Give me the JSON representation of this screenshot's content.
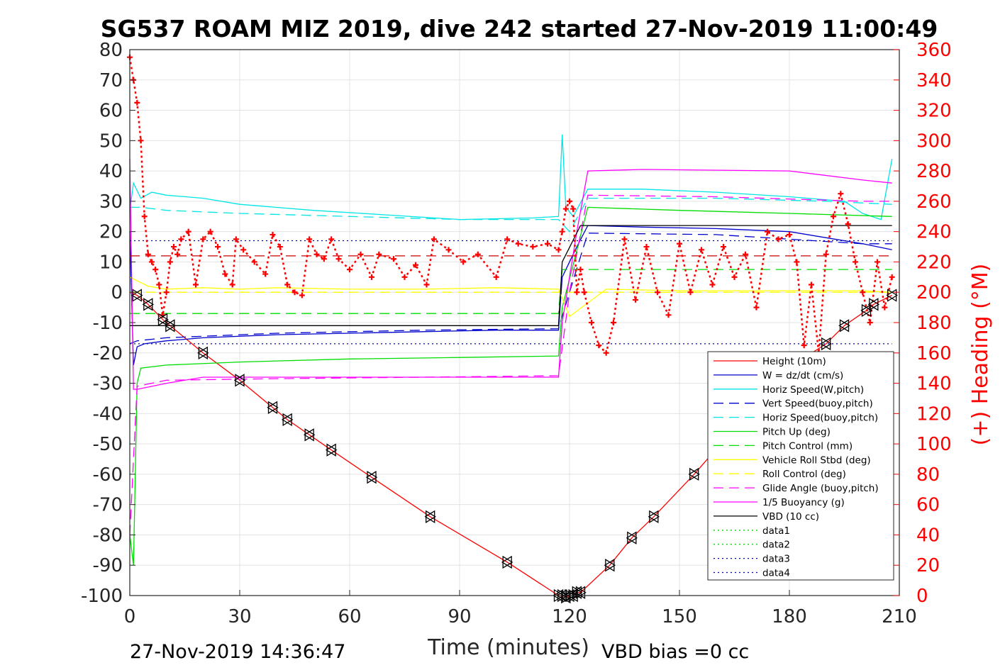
{
  "chart_data": {
    "type": "line",
    "title": "SG537 ROAM MIZ 2019, dive 242 started 27-Nov-2019 11:00:49",
    "xlabel": "Time (minutes)",
    "ylabel_right": "(+) Heading (°M)",
    "xlim": [
      0,
      210
    ],
    "ylim_left": [
      -100,
      80
    ],
    "ylim_right": [
      0,
      360
    ],
    "x_ticks": [
      "0",
      "30",
      "60",
      "90",
      "120",
      "150",
      "180",
      "210"
    ],
    "y_ticks_left": [
      "80",
      "70",
      "60",
      "50",
      "40",
      "30",
      "20",
      "10",
      "0",
      "-10",
      "-20",
      "-30",
      "-40",
      "-50",
      "-60",
      "-70",
      "-80",
      "-90",
      "-100"
    ],
    "y_ticks_right": [
      "360",
      "340",
      "320",
      "300",
      "280",
      "260",
      "240",
      "220",
      "200",
      "180",
      "160",
      "140",
      "120",
      "100",
      "80",
      "60",
      "40",
      "20",
      "0"
    ],
    "grid": true,
    "legend_position": "lower-right",
    "footer_left": "27-Nov-2019 14:36:47",
    "footer_right": "VBD bias =0 cc",
    "series": [
      {
        "name": "Height (10m)",
        "color": "#ff0000",
        "style": "solid",
        "x": [
          0,
          2,
          5,
          9,
          11,
          20,
          30,
          39,
          43,
          49,
          55,
          66,
          82,
          103,
          117,
          118,
          119,
          120,
          121,
          122,
          123,
          131,
          137,
          143,
          154,
          162,
          171,
          181,
          190,
          195,
          201,
          203,
          208
        ],
        "y": [
          0,
          -1,
          -4,
          -9,
          -11,
          -20,
          -29,
          -38,
          -42,
          -47,
          -52,
          -61,
          -74,
          -89,
          -100,
          -100,
          -100.5,
          -100,
          -100,
          -99,
          -99,
          -90,
          -81,
          -74,
          -60,
          -49,
          -37,
          -24,
          -17,
          -11,
          -6,
          -4,
          -1
        ]
      },
      {
        "name": "W = dz/dt (cm/s)",
        "color": "#0000cc",
        "style": "solid",
        "x": [
          0,
          1,
          2,
          4,
          10,
          20,
          40,
          60,
          80,
          100,
          117,
          118,
          122,
          125,
          140,
          160,
          180,
          200,
          208
        ],
        "y": [
          20,
          -24,
          -18,
          -17,
          -16,
          -15,
          -14,
          -13.5,
          -13,
          -12.5,
          -12.5,
          5,
          15,
          22,
          21.5,
          21,
          20,
          16,
          14
        ]
      },
      {
        "name": "Horiz Speed(W,pitch)",
        "color": "#00e5e5",
        "style": "solid",
        "x": [
          0,
          1,
          3,
          6,
          10,
          20,
          30,
          50,
          70,
          90,
          110,
          117,
          118,
          119,
          121,
          125,
          140,
          160,
          180,
          195,
          200,
          205,
          208
        ],
        "y": [
          27,
          36,
          31,
          33,
          32,
          31,
          29,
          27,
          25.5,
          24,
          24.5,
          25,
          52,
          28,
          25,
          34,
          34,
          33,
          31.5,
          30,
          26,
          24,
          44
        ]
      },
      {
        "name": "Vert Speed(buoy,pitch)",
        "color": "#0000cc",
        "style": "dashed",
        "x": [
          0,
          2,
          10,
          40,
          80,
          117,
          120,
          125,
          160,
          200,
          208
        ],
        "y": [
          -17,
          -16,
          -15,
          -13.5,
          -12.5,
          -12,
          0,
          19.5,
          19,
          16,
          16
        ]
      },
      {
        "name": "Horiz Speed(buoy,pitch)",
        "color": "#00e5e5",
        "style": "dashed",
        "x": [
          0,
          3,
          10,
          30,
          60,
          90,
          117,
          120,
          125,
          160,
          190,
          208
        ],
        "y": [
          28,
          28,
          27,
          26,
          25,
          24,
          24,
          20,
          31,
          31,
          30,
          29
        ]
      },
      {
        "name": "Pitch Up (deg)",
        "color": "#00dd00",
        "style": "solid",
        "x": [
          0,
          1,
          2,
          3,
          10,
          30,
          60,
          90,
          117,
          118,
          125,
          150,
          180,
          208
        ],
        "y": [
          -80,
          -90,
          -30,
          -25,
          -24,
          -23,
          -22,
          -21.5,
          -21,
          -5,
          28,
          27,
          26,
          25
        ]
      },
      {
        "name": "Pitch Control (mm)",
        "color": "#00dd00",
        "style": "dashed",
        "x": [
          0,
          117,
          118,
          208
        ],
        "y": [
          -7,
          -7,
          7.5,
          7.5
        ]
      },
      {
        "name": "Vehicle Roll Stbd (deg)",
        "color": "#ffff00",
        "style": "solid",
        "x": [
          0,
          5,
          10,
          20,
          30,
          40,
          60,
          80,
          100,
          117,
          120,
          130,
          150,
          170,
          190,
          200,
          208
        ],
        "y": [
          5,
          2,
          1,
          1.5,
          1,
          1.5,
          1,
          1,
          1.5,
          1,
          -8,
          1,
          0.5,
          0.5,
          0.5,
          0.5,
          0
        ]
      },
      {
        "name": "Roll Control (deg)",
        "color": "#ffff00",
        "style": "dashed",
        "x": [
          0,
          208
        ],
        "y": [
          0,
          0
        ]
      },
      {
        "name": "Glide Angle (buoy,pitch)",
        "color": "#ff00ff",
        "style": "dashed",
        "x": [
          0,
          2,
          10,
          40,
          80,
          117,
          120,
          125,
          160,
          200,
          208
        ],
        "y": [
          -80,
          -31,
          -29,
          -28.5,
          -28,
          -27.5,
          0,
          32,
          31.5,
          30,
          30
        ]
      },
      {
        "name": "1/5 Buoyancy (g)",
        "color": "#ff00ff",
        "style": "solid",
        "x": [
          0,
          1,
          2,
          10,
          20,
          40,
          80,
          117,
          118,
          122,
          125,
          140,
          180,
          200,
          208
        ],
        "y": [
          44,
          -32,
          -32,
          -30,
          -28,
          -28,
          -28,
          -28,
          -10,
          20,
          40,
          40.5,
          40,
          37,
          36
        ]
      },
      {
        "name": "VBD (10 cc)",
        "color": "#000000",
        "style": "solid",
        "x": [
          0,
          1,
          2,
          117,
          118,
          123,
          125,
          208
        ],
        "y": [
          -11,
          -11,
          -11,
          -11,
          10,
          22,
          22,
          22
        ]
      },
      {
        "name": "data1",
        "color": "#00dd00",
        "style": "dotted",
        "x": [],
        "y": []
      },
      {
        "name": "data2",
        "color": "#00dd00",
        "style": "dotted",
        "x": [],
        "y": []
      },
      {
        "name": "data3",
        "color": "#0000aa",
        "style": "dotted",
        "x": [
          0,
          208
        ],
        "y": [
          -17,
          -17
        ]
      },
      {
        "name": "data4",
        "color": "#0000aa",
        "style": "dotted",
        "x": [
          0,
          208
        ],
        "y": [
          17,
          17
        ]
      }
    ],
    "extra_lines": [
      {
        "color": "#cc0000",
        "style": "dashed",
        "x": [
          0,
          208
        ],
        "y": [
          12,
          12
        ]
      }
    ],
    "heading_markers": {
      "color": "#ff0000",
      "marker": "+",
      "axis": "right",
      "x": [
        0,
        1,
        2,
        3,
        4,
        5,
        6,
        7,
        8,
        9,
        10,
        11,
        12,
        13,
        14,
        16,
        18,
        20,
        22,
        24,
        26,
        28,
        29,
        31,
        34,
        37,
        39,
        41,
        43,
        45,
        47,
        49,
        51,
        53,
        55,
        57,
        60,
        63,
        66,
        68,
        72,
        75,
        78,
        81,
        83,
        87,
        91,
        95,
        100,
        103,
        106,
        110,
        114,
        117,
        118,
        119,
        120,
        121,
        122,
        123,
        124,
        126,
        128,
        130,
        132,
        135,
        138,
        141,
        144,
        147,
        150,
        153,
        156,
        159,
        162,
        165,
        168,
        171,
        174,
        177,
        180,
        182,
        184,
        186,
        188,
        190,
        192,
        194,
        196,
        198,
        200,
        202,
        204,
        206,
        208
      ],
      "y": [
        355,
        340,
        325,
        300,
        250,
        225,
        220,
        215,
        205,
        185,
        200,
        220,
        230,
        225,
        235,
        240,
        205,
        235,
        240,
        230,
        212,
        205,
        235,
        228,
        220,
        212,
        238,
        230,
        205,
        200,
        198,
        235,
        225,
        222,
        235,
        222,
        215,
        225,
        210,
        225,
        222,
        210,
        218,
        205,
        235,
        228,
        220,
        225,
        210,
        235,
        232,
        230,
        232,
        228,
        240,
        255,
        260,
        255,
        200,
        215,
        200,
        180,
        165,
        160,
        180,
        235,
        195,
        230,
        200,
        185,
        232,
        200,
        228,
        205,
        230,
        210,
        225,
        190,
        240,
        235,
        238,
        220,
        165,
        205,
        160,
        225,
        250,
        265,
        245,
        220,
        200,
        180,
        220,
        190,
        210
      ]
    },
    "depth_markers": {
      "color": "#000000",
      "marker": "triangle",
      "x": [
        2,
        5,
        9,
        11,
        20,
        30,
        39,
        43,
        49,
        55,
        66,
        82,
        103,
        117,
        118,
        119,
        120,
        121,
        122,
        123,
        131,
        137,
        143,
        154,
        190,
        195,
        201,
        203,
        208
      ],
      "y": [
        -1,
        -4,
        -9,
        -11,
        -20,
        -29,
        -38,
        -42,
        -47,
        -52,
        -61,
        -74,
        -89,
        -100,
        -100,
        -100.5,
        -100,
        -100,
        -99,
        -99,
        -90,
        -81,
        -74,
        -60,
        -17,
        -11,
        -6,
        -4,
        -1
      ]
    }
  }
}
